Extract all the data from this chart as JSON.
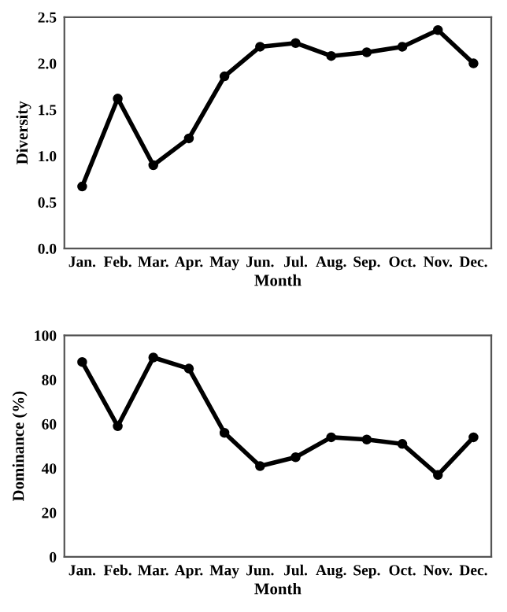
{
  "chart_data": [
    {
      "type": "line",
      "xlabel": "Month",
      "ylabel": "Diversity",
      "categories": [
        "Jan.",
        "Feb.",
        "Mar.",
        "Apr.",
        "May",
        "Jun.",
        "Jul.",
        "Aug.",
        "Sep.",
        "Oct.",
        "Nov.",
        "Dec."
      ],
      "series": [
        {
          "color": "#000000",
          "values": [
            0.67,
            1.62,
            0.9,
            1.19,
            1.86,
            2.18,
            2.22,
            2.08,
            2.12,
            2.18,
            2.36,
            2.0
          ]
        }
      ],
      "ylim": [
        0,
        2.5
      ],
      "yticks": [
        {
          "value": 0,
          "label": "0.0"
        },
        {
          "value": 0.5,
          "label": "0.5"
        },
        {
          "value": 1,
          "label": "1.0"
        },
        {
          "value": 1.5,
          "label": "1.5"
        },
        {
          "value": 2,
          "label": "2.0"
        },
        {
          "value": 2.5,
          "label": "2.5"
        }
      ],
      "marker": "circle",
      "line_style": "solid",
      "grid": false,
      "legend": false
    },
    {
      "type": "line",
      "xlabel": "Month",
      "ylabel": "Dominance (%)",
      "categories": [
        "Jan.",
        "Feb.",
        "Mar.",
        "Apr.",
        "May",
        "Jun.",
        "Jul.",
        "Aug.",
        "Sep.",
        "Oct.",
        "Nov.",
        "Dec."
      ],
      "series": [
        {
          "color": "#000000",
          "values": [
            88,
            59,
            90,
            85,
            56,
            41,
            45,
            54,
            53,
            51,
            37,
            54
          ]
        }
      ],
      "ylim": [
        0,
        100
      ],
      "yticks": [
        0,
        20,
        40,
        60,
        80,
        100
      ],
      "marker": "circle",
      "line_style": "solid",
      "grid": false,
      "legend": false
    }
  ]
}
